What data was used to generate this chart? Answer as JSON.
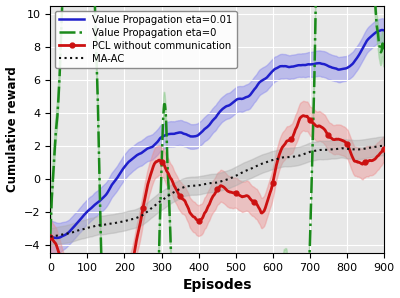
{
  "xlabel": "Episodes",
  "ylabel": "Cumulative reward",
  "xlim": [
    0,
    900
  ],
  "ylim": [
    -4.5,
    10.5
  ],
  "xticks": [
    0,
    100,
    200,
    300,
    400,
    500,
    600,
    700,
    800,
    900
  ],
  "yticks": [
    -4,
    -2,
    0,
    2,
    4,
    6,
    8,
    10
  ],
  "line_colors": {
    "vp_eta01": "#1f1fcc",
    "vp_eta0": "#1a8a1a",
    "pcl": "#cc1111",
    "maac": "#111111"
  },
  "fill_colors": {
    "vp_eta01": "#8888ee",
    "vp_eta0": "#88cc88",
    "pcl": "#ee8888",
    "maac": "#aaaaaa"
  },
  "legend_labels": [
    "Value Propagation eta=0.01",
    "Value Propagation eta=0",
    "PCL without communication",
    "MA-AC"
  ],
  "bg_color": "#e8e8e8"
}
